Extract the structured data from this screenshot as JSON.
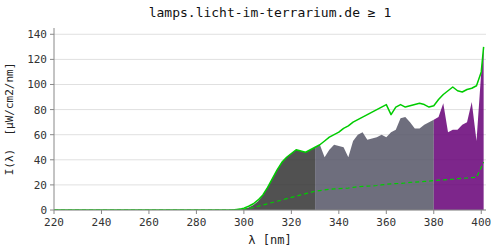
{
  "chart_data": {
    "type": "line",
    "title": "lamps.licht-im-terrarium.de ≥ 1",
    "x_label": "λ [nm]",
    "y_label": "I(λ)  [μW/cm2/nm]",
    "xlim": [
      220,
      402
    ],
    "ylim": [
      0,
      145
    ],
    "xticks": [
      220,
      240,
      260,
      280,
      300,
      320,
      340,
      360,
      380,
      400
    ],
    "yticks": [
      0,
      20,
      40,
      60,
      80,
      100,
      120,
      140
    ],
    "grid": true,
    "series": [
      {
        "type": "area",
        "color": "#333333",
        "x": [
          295,
          297,
          299,
          300,
          302,
          304,
          306,
          308,
          310,
          312,
          314,
          316,
          318,
          320,
          322,
          324,
          326,
          328,
          330
        ],
        "values": [
          0,
          0.2,
          0.5,
          0.8,
          2,
          4,
          7,
          12,
          18,
          25,
          32,
          38,
          42,
          45,
          48,
          47,
          46,
          48,
          50
        ]
      },
      {
        "type": "area",
        "color": "#555566",
        "x": [
          330,
          332,
          334,
          336,
          338,
          340,
          342,
          344,
          346,
          348,
          350,
          352,
          354,
          356,
          358,
          360,
          362,
          364,
          366,
          368,
          370,
          372,
          374,
          376,
          378,
          380
        ],
        "values": [
          50,
          52,
          42,
          48,
          52,
          51,
          50,
          42,
          55,
          60,
          62,
          56,
          57,
          58,
          60,
          58,
          62,
          64,
          73,
          74,
          70,
          65,
          65,
          68,
          70,
          72
        ]
      },
      {
        "type": "area",
        "color": "#660077",
        "x": [
          380,
          382,
          384,
          386,
          388,
          390,
          392,
          394,
          396,
          398,
          400,
          401
        ],
        "values": [
          72,
          74,
          85,
          62,
          64,
          64,
          68,
          70,
          86,
          55,
          110,
          130
        ]
      },
      {
        "type": "line",
        "color": "#00cc00",
        "line_style": "solid",
        "x": [
          220,
          230,
          240,
          250,
          260,
          270,
          280,
          290,
          295,
          297,
          299,
          300,
          302,
          304,
          306,
          308,
          310,
          312,
          314,
          316,
          318,
          320,
          322,
          324,
          326,
          328,
          330,
          332,
          334,
          336,
          338,
          340,
          342,
          344,
          346,
          348,
          350,
          352,
          354,
          356,
          358,
          360,
          362,
          364,
          366,
          368,
          370,
          372,
          374,
          376,
          378,
          380,
          382,
          384,
          386,
          388,
          390,
          392,
          394,
          396,
          398,
          400,
          401
        ],
        "values": [
          0,
          0,
          0,
          0,
          0,
          0,
          0,
          0,
          0,
          0.5,
          1,
          1.5,
          3,
          5,
          8,
          12,
          18,
          25,
          32,
          38,
          42,
          45,
          48,
          47,
          46,
          48,
          50,
          52,
          55,
          58,
          60,
          62,
          65,
          67,
          70,
          72,
          74,
          76,
          78,
          80,
          82,
          84,
          76,
          82,
          84,
          82,
          83,
          84,
          85,
          84,
          82,
          83,
          88,
          92,
          95,
          98,
          95,
          94,
          96,
          97,
          99,
          110,
          130
        ]
      },
      {
        "type": "line",
        "color": "#00cc00",
        "line_style": "dashed",
        "x": [
          220,
          230,
          240,
          250,
          260,
          270,
          280,
          290,
          295,
          297,
          299,
          300,
          302,
          304,
          306,
          308,
          310,
          312,
          314,
          316,
          318,
          320,
          322,
          324,
          326,
          328,
          330,
          332,
          334,
          336,
          338,
          340,
          342,
          344,
          346,
          348,
          350,
          352,
          354,
          356,
          358,
          360,
          362,
          364,
          366,
          368,
          370,
          372,
          374,
          376,
          378,
          380,
          382,
          384,
          386,
          388,
          390,
          392,
          394,
          396,
          398,
          400,
          401
        ],
        "values": [
          0,
          0,
          0,
          0,
          0,
          0,
          0,
          0,
          0,
          0.2,
          0.5,
          0.8,
          1.2,
          2,
          3,
          4,
          5,
          6,
          7,
          8,
          9,
          10,
          11,
          12,
          13,
          14,
          15,
          15.5,
          16,
          16.5,
          16.8,
          17,
          17.2,
          17.5,
          18,
          18.5,
          18.8,
          19,
          19.2,
          19.5,
          20,
          20.5,
          20.8,
          21,
          21.2,
          21.5,
          22,
          22.2,
          22.5,
          22.8,
          23,
          23.5,
          23.8,
          24,
          24.2,
          24.5,
          25,
          25.2,
          25.5,
          25.8,
          26,
          34,
          38
        ]
      }
    ]
  }
}
